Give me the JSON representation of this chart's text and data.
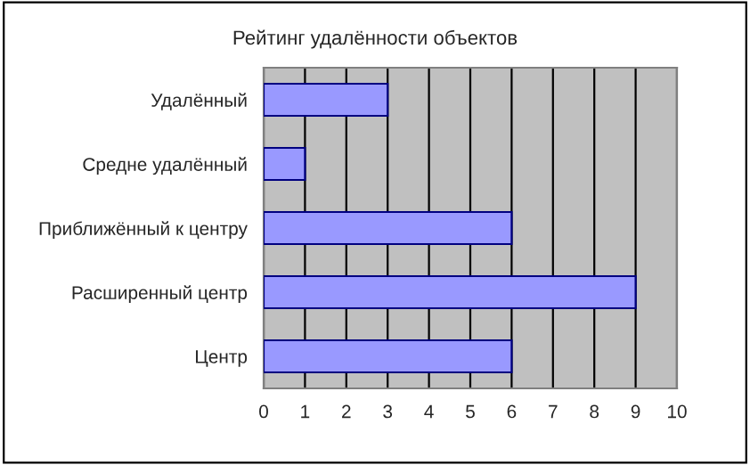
{
  "chart_data": {
    "type": "bar",
    "orientation": "horizontal",
    "title": "Рейтинг удалённости объектов",
    "categories": [
      "Удалённый",
      "Средне удалённый",
      "Приближённый к центру",
      "Расширенный центр",
      "Центр"
    ],
    "values": [
      3,
      1,
      6,
      9,
      6
    ],
    "color": "#9999ff",
    "xlim": [
      0,
      10
    ],
    "xticks": [
      0,
      1,
      2,
      3,
      4,
      5,
      6,
      7,
      8,
      9,
      10
    ],
    "grid": "x",
    "legend": false
  }
}
